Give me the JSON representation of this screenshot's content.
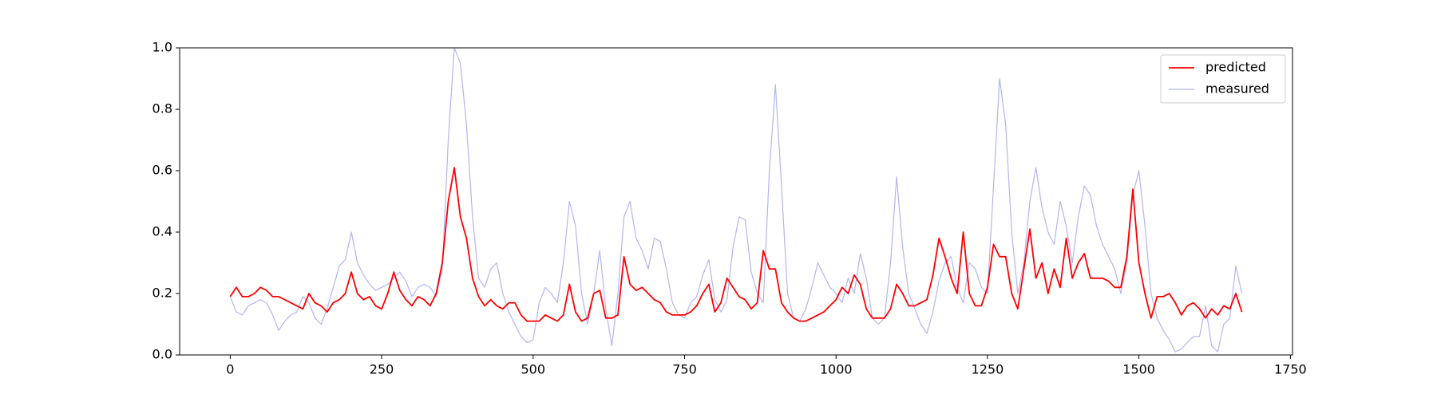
{
  "chart_data": {
    "type": "line",
    "x": [
      0,
      10,
      20,
      30,
      40,
      50,
      60,
      70,
      80,
      90,
      100,
      110,
      120,
      130,
      140,
      150,
      160,
      170,
      180,
      190,
      200,
      210,
      220,
      230,
      240,
      250,
      260,
      270,
      280,
      290,
      300,
      310,
      320,
      330,
      340,
      350,
      360,
      370,
      380,
      390,
      400,
      410,
      420,
      430,
      440,
      450,
      460,
      470,
      480,
      490,
      500,
      510,
      520,
      530,
      540,
      550,
      560,
      570,
      580,
      590,
      600,
      610,
      620,
      630,
      640,
      650,
      660,
      670,
      680,
      690,
      700,
      710,
      720,
      730,
      740,
      750,
      760,
      770,
      780,
      790,
      800,
      810,
      820,
      830,
      840,
      850,
      860,
      870,
      880,
      890,
      900,
      910,
      920,
      930,
      940,
      950,
      960,
      970,
      980,
      990,
      1000,
      1010,
      1020,
      1030,
      1040,
      1050,
      1060,
      1070,
      1080,
      1090,
      1100,
      1110,
      1120,
      1130,
      1140,
      1150,
      1160,
      1170,
      1180,
      1190,
      1200,
      1210,
      1220,
      1230,
      1240,
      1250,
      1260,
      1270,
      1280,
      1290,
      1300,
      1310,
      1320,
      1330,
      1340,
      1350,
      1360,
      1370,
      1380,
      1390,
      1400,
      1410,
      1420,
      1430,
      1440,
      1450,
      1460,
      1470,
      1480,
      1490,
      1500,
      1510,
      1520,
      1530,
      1540,
      1550,
      1560,
      1570,
      1580,
      1590,
      1600,
      1610,
      1620,
      1630,
      1640,
      1650,
      1660,
      1670
    ],
    "series": [
      {
        "name": "predicted",
        "color": "#ff0000",
        "values": [
          0.19,
          0.22,
          0.19,
          0.19,
          0.2,
          0.22,
          0.21,
          0.19,
          0.19,
          0.18,
          0.17,
          0.16,
          0.15,
          0.2,
          0.17,
          0.16,
          0.14,
          0.17,
          0.18,
          0.2,
          0.27,
          0.2,
          0.18,
          0.19,
          0.16,
          0.15,
          0.2,
          0.27,
          0.21,
          0.18,
          0.16,
          0.19,
          0.18,
          0.16,
          0.2,
          0.3,
          0.5,
          0.61,
          0.45,
          0.38,
          0.25,
          0.19,
          0.16,
          0.18,
          0.16,
          0.15,
          0.17,
          0.17,
          0.13,
          0.11,
          0.11,
          0.11,
          0.13,
          0.12,
          0.11,
          0.13,
          0.23,
          0.14,
          0.11,
          0.12,
          0.2,
          0.21,
          0.12,
          0.12,
          0.13,
          0.32,
          0.23,
          0.21,
          0.22,
          0.2,
          0.18,
          0.17,
          0.14,
          0.13,
          0.13,
          0.13,
          0.14,
          0.16,
          0.2,
          0.23,
          0.14,
          0.17,
          0.25,
          0.22,
          0.19,
          0.18,
          0.15,
          0.17,
          0.34,
          0.28,
          0.28,
          0.17,
          0.14,
          0.12,
          0.11,
          0.11,
          0.12,
          0.13,
          0.14,
          0.16,
          0.18,
          0.22,
          0.2,
          0.26,
          0.23,
          0.15,
          0.12,
          0.12,
          0.12,
          0.15,
          0.23,
          0.2,
          0.16,
          0.16,
          0.17,
          0.18,
          0.26,
          0.38,
          0.32,
          0.25,
          0.2,
          0.4,
          0.2,
          0.16,
          0.16,
          0.22,
          0.36,
          0.32,
          0.32,
          0.2,
          0.15,
          0.28,
          0.41,
          0.25,
          0.3,
          0.2,
          0.28,
          0.22,
          0.38,
          0.25,
          0.3,
          0.33,
          0.25,
          0.25,
          0.25,
          0.24,
          0.22,
          0.22,
          0.32,
          0.54,
          0.3,
          0.2,
          0.12,
          0.19,
          0.19,
          0.2,
          0.17,
          0.13,
          0.16,
          0.17,
          0.15,
          0.12,
          0.15,
          0.13,
          0.16,
          0.15,
          0.2,
          0.14
        ]
      },
      {
        "name": "measured",
        "color": "#b4b4f4",
        "values": [
          0.19,
          0.14,
          0.13,
          0.16,
          0.17,
          0.18,
          0.17,
          0.13,
          0.08,
          0.11,
          0.13,
          0.14,
          0.19,
          0.17,
          0.12,
          0.1,
          0.15,
          0.22,
          0.29,
          0.31,
          0.4,
          0.3,
          0.26,
          0.23,
          0.21,
          0.22,
          0.23,
          0.25,
          0.27,
          0.24,
          0.19,
          0.22,
          0.23,
          0.22,
          0.19,
          0.28,
          0.7,
          1.0,
          0.95,
          0.75,
          0.45,
          0.25,
          0.22,
          0.28,
          0.3,
          0.2,
          0.14,
          0.1,
          0.06,
          0.04,
          0.05,
          0.17,
          0.22,
          0.2,
          0.17,
          0.3,
          0.5,
          0.42,
          0.2,
          0.1,
          0.2,
          0.34,
          0.15,
          0.03,
          0.2,
          0.45,
          0.5,
          0.38,
          0.34,
          0.28,
          0.38,
          0.37,
          0.28,
          0.17,
          0.13,
          0.12,
          0.17,
          0.19,
          0.26,
          0.31,
          0.18,
          0.14,
          0.18,
          0.35,
          0.45,
          0.44,
          0.27,
          0.2,
          0.17,
          0.6,
          0.88,
          0.55,
          0.2,
          0.12,
          0.11,
          0.15,
          0.22,
          0.3,
          0.26,
          0.22,
          0.2,
          0.17,
          0.25,
          0.2,
          0.33,
          0.25,
          0.12,
          0.1,
          0.12,
          0.3,
          0.58,
          0.35,
          0.2,
          0.15,
          0.1,
          0.07,
          0.14,
          0.24,
          0.3,
          0.32,
          0.22,
          0.17,
          0.3,
          0.28,
          0.22,
          0.2,
          0.55,
          0.9,
          0.75,
          0.4,
          0.2,
          0.3,
          0.5,
          0.61,
          0.48,
          0.4,
          0.36,
          0.5,
          0.42,
          0.3,
          0.45,
          0.55,
          0.52,
          0.42,
          0.36,
          0.32,
          0.28,
          0.2,
          0.3,
          0.52,
          0.6,
          0.42,
          0.2,
          0.12,
          0.08,
          0.05,
          0.01,
          0.02,
          0.04,
          0.06,
          0.06,
          0.16,
          0.03,
          0.01,
          0.1,
          0.12,
          0.29,
          0.2
        ]
      }
    ],
    "xlim": [
      -83.5,
      1753.5
    ],
    "xticks": [
      0,
      250,
      500,
      750,
      1000,
      1250,
      1500,
      1750
    ],
    "ylim": [
      0,
      1
    ],
    "yticks": [
      {
        "value": 0,
        "label": "0.0"
      },
      0.2,
      0.4,
      0.6,
      0.8,
      {
        "value": 1,
        "label": "1.0"
      }
    ],
    "legend": "upper right"
  }
}
